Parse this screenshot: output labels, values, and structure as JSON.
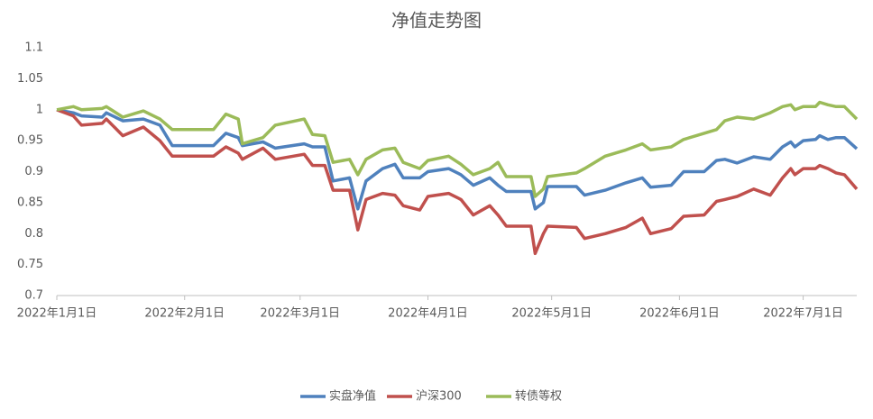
{
  "chart_data": {
    "type": "line",
    "title": "净值走势图",
    "x": [
      "2022-01-01",
      "2022-01-05",
      "2022-01-07",
      "2022-01-12",
      "2022-01-13",
      "2022-01-17",
      "2022-01-22",
      "2022-01-26",
      "2022-01-29",
      "2022-02-08",
      "2022-02-11",
      "2022-02-14",
      "2022-02-15",
      "2022-02-20",
      "2022-02-23",
      "2022-03-02",
      "2022-03-04",
      "2022-03-07",
      "2022-03-09",
      "2022-03-13",
      "2022-03-15",
      "2022-03-17",
      "2022-03-21",
      "2022-03-24",
      "2022-03-26",
      "2022-03-30",
      "2022-04-01",
      "2022-04-06",
      "2022-04-09",
      "2022-04-12",
      "2022-04-16",
      "2022-04-18",
      "2022-04-20",
      "2022-04-26",
      "2022-04-27",
      "2022-04-29",
      "2022-04-30",
      "2022-05-07",
      "2022-05-09",
      "2022-05-14",
      "2022-05-19",
      "2022-05-23",
      "2022-05-25",
      "2022-05-30",
      "2022-06-02",
      "2022-06-07",
      "2022-06-10",
      "2022-06-12",
      "2022-06-15",
      "2022-06-19",
      "2022-06-23",
      "2022-06-26",
      "2022-06-28",
      "2022-06-29",
      "2022-07-01",
      "2022-07-04",
      "2022-07-05",
      "2022-07-07",
      "2022-07-09",
      "2022-07-11",
      "2022-07-14"
    ],
    "series": [
      {
        "name": "实盘净值",
        "color": "#4f81bd",
        "values": [
          1.0,
          0.995,
          0.99,
          0.988,
          0.995,
          0.982,
          0.985,
          0.975,
          0.942,
          0.942,
          0.962,
          0.955,
          0.942,
          0.948,
          0.938,
          0.945,
          0.94,
          0.94,
          0.885,
          0.89,
          0.84,
          0.885,
          0.905,
          0.912,
          0.89,
          0.89,
          0.9,
          0.905,
          0.895,
          0.878,
          0.89,
          0.878,
          0.868,
          0.868,
          0.84,
          0.85,
          0.876,
          0.876,
          0.862,
          0.87,
          0.882,
          0.89,
          0.875,
          0.878,
          0.9,
          0.9,
          0.918,
          0.92,
          0.914,
          0.924,
          0.92,
          0.94,
          0.948,
          0.94,
          0.95,
          0.952,
          0.958,
          0.952,
          0.955,
          0.955,
          0.937
        ]
      },
      {
        "name": "沪深300",
        "color": "#c0504d",
        "values": [
          1.0,
          0.99,
          0.975,
          0.978,
          0.985,
          0.958,
          0.972,
          0.95,
          0.925,
          0.925,
          0.94,
          0.93,
          0.92,
          0.938,
          0.92,
          0.928,
          0.91,
          0.91,
          0.87,
          0.87,
          0.806,
          0.855,
          0.865,
          0.862,
          0.845,
          0.838,
          0.86,
          0.865,
          0.855,
          0.83,
          0.845,
          0.83,
          0.812,
          0.812,
          0.768,
          0.8,
          0.812,
          0.81,
          0.792,
          0.8,
          0.81,
          0.825,
          0.8,
          0.808,
          0.828,
          0.83,
          0.852,
          0.855,
          0.86,
          0.872,
          0.862,
          0.89,
          0.905,
          0.895,
          0.905,
          0.905,
          0.91,
          0.905,
          0.898,
          0.895,
          0.872
        ]
      },
      {
        "name": "转债等权",
        "color": "#9bbb59",
        "values": [
          1.0,
          1.005,
          1.0,
          1.002,
          1.005,
          0.988,
          0.998,
          0.985,
          0.968,
          0.968,
          0.993,
          0.985,
          0.945,
          0.955,
          0.975,
          0.985,
          0.96,
          0.958,
          0.915,
          0.92,
          0.895,
          0.92,
          0.935,
          0.938,
          0.915,
          0.905,
          0.918,
          0.925,
          0.912,
          0.895,
          0.905,
          0.915,
          0.892,
          0.892,
          0.86,
          0.872,
          0.892,
          0.898,
          0.905,
          0.925,
          0.935,
          0.945,
          0.935,
          0.94,
          0.952,
          0.962,
          0.968,
          0.982,
          0.988,
          0.985,
          0.995,
          1.005,
          1.008,
          1.0,
          1.005,
          1.005,
          1.012,
          1.008,
          1.005,
          1.005,
          0.985
        ]
      }
    ],
    "xlim": [
      "2022-01-01",
      "2022-07-14"
    ],
    "xticks": [
      {
        "value": "2022-01-01",
        "label": "2022年1月1日"
      },
      {
        "value": "2022-02-01",
        "label": "2022年2月1日"
      },
      {
        "value": "2022-03-01",
        "label": "2022年3月1日"
      },
      {
        "value": "2022-04-01",
        "label": "2022年4月1日"
      },
      {
        "value": "2022-05-01",
        "label": "2022年5月1日"
      },
      {
        "value": "2022-06-01",
        "label": "2022年6月1日"
      },
      {
        "value": "2022-07-01",
        "label": "2022年7月1日"
      }
    ],
    "ylim": [
      0.7,
      1.1
    ],
    "yticks": [
      0.7,
      0.75,
      0.8,
      0.85,
      0.9,
      0.95,
      1,
      1.05,
      1.1
    ],
    "grid": false,
    "legend": "bottom"
  }
}
